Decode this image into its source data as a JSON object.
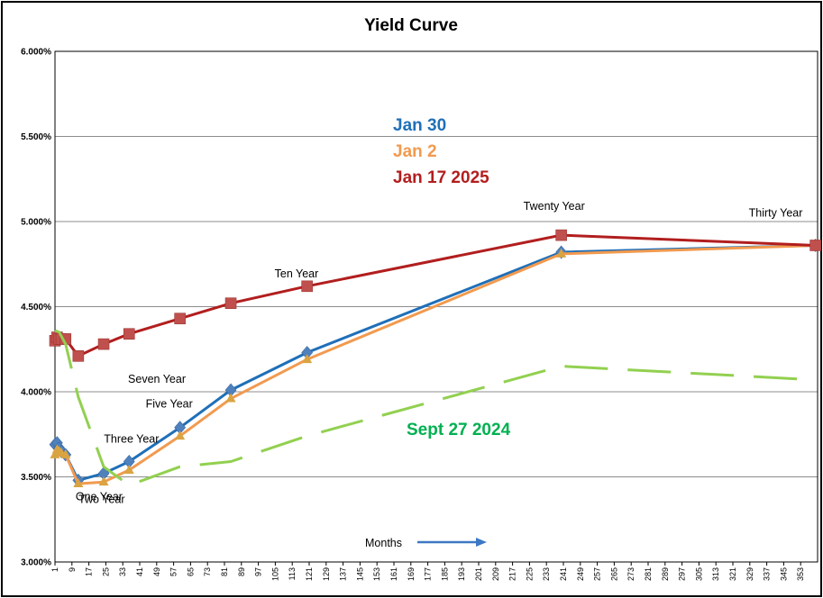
{
  "chart_data": {
    "type": "line",
    "title": "Yield Curve",
    "xlabel": "Months",
    "ylabel": "",
    "xlim": [
      1,
      361
    ],
    "ylim": [
      3.0,
      6.0
    ],
    "y_ticks": [
      "3.000%",
      "3.500%",
      "4.000%",
      "4.500%",
      "5.000%",
      "5.500%",
      "6.000%"
    ],
    "y_tick_values": [
      3.0,
      3.5,
      4.0,
      4.5,
      5.0,
      5.5,
      6.0
    ],
    "x_ticks": [
      1,
      9,
      17,
      25,
      33,
      41,
      49,
      57,
      65,
      73,
      81,
      89,
      97,
      105,
      113,
      121,
      129,
      137,
      145,
      153,
      161,
      169,
      177,
      185,
      193,
      201,
      209,
      217,
      225,
      233,
      241,
      249,
      257,
      265,
      273,
      281,
      289,
      297,
      305,
      313,
      321,
      329,
      337,
      345,
      353
    ],
    "grid": true,
    "colors": {
      "jan30": "#1f6fb8",
      "jan2": "#f29a4f",
      "jan17_2025": "#b21e1e",
      "sept27_2024": "#92d050",
      "sept27_label": "#00b050",
      "months_arrow": "#3d78c4"
    },
    "series": [
      {
        "name": "Jan 30",
        "color": "#1f6fb8",
        "marker": "diamond",
        "marker_color": "#4f81bd",
        "x": [
          1,
          2,
          3,
          4,
          6,
          12,
          24,
          36,
          60,
          84,
          120,
          240,
          360
        ],
        "y": [
          3.69,
          3.7,
          3.67,
          3.65,
          3.63,
          3.48,
          3.52,
          3.59,
          3.79,
          4.01,
          4.23,
          4.82,
          4.86
        ]
      },
      {
        "name": "Jan 2",
        "color": "#f29a4f",
        "marker": "triangle",
        "marker_color": "#d9a441",
        "x": [
          1,
          2,
          3,
          4,
          6,
          12,
          24,
          36,
          60,
          84,
          120,
          240,
          360
        ],
        "y": [
          3.63,
          3.66,
          3.65,
          3.64,
          3.63,
          3.46,
          3.47,
          3.54,
          3.74,
          3.96,
          4.19,
          4.81,
          4.86
        ]
      },
      {
        "name": "Jan 17 2025",
        "color": "#b21e1e",
        "marker": "square",
        "marker_color": "#c0504d",
        "x": [
          1,
          2,
          3,
          4,
          6,
          12,
          24,
          36,
          60,
          84,
          120,
          240,
          360
        ],
        "y": [
          4.3,
          4.32,
          4.31,
          4.31,
          4.31,
          4.21,
          4.28,
          4.34,
          4.43,
          4.52,
          4.62,
          4.92,
          4.86
        ]
      },
      {
        "name": "Sept 27 2024",
        "color": "#92d050",
        "marker": "none",
        "dashed": true,
        "x": [
          1,
          3,
          6,
          12,
          24,
          36,
          60,
          84,
          120,
          240,
          360
        ],
        "y": [
          4.36,
          4.35,
          4.28,
          3.97,
          3.56,
          3.45,
          3.56,
          3.59,
          3.74,
          4.15,
          4.07
        ]
      }
    ],
    "annotations": [
      {
        "text": "One Year",
        "x": 12,
        "y": 3.48
      },
      {
        "text": "Two Year",
        "x": 24,
        "y": 3.52
      },
      {
        "text": "Three Year",
        "x": 36,
        "y": 3.59
      },
      {
        "text": "Five Year",
        "x": 60,
        "y": 3.79
      },
      {
        "text": "Seven Year",
        "x": 84,
        "y": 4.01
      },
      {
        "text": "Ten Year",
        "x": 120,
        "y": 4.62
      },
      {
        "text": "Twenty Year",
        "x": 240,
        "y": 4.92
      },
      {
        "text": "Thirty Year",
        "x": 360,
        "y": 4.86
      }
    ],
    "legend_labels": [
      {
        "text": "Jan 30",
        "color": "#1f6fb8"
      },
      {
        "text": "Jan 2",
        "color": "#f29a4f"
      },
      {
        "text": "Jan 17 2025",
        "color": "#b21e1e"
      },
      {
        "text": "Sept 27 2024",
        "color": "#00b050"
      }
    ]
  }
}
